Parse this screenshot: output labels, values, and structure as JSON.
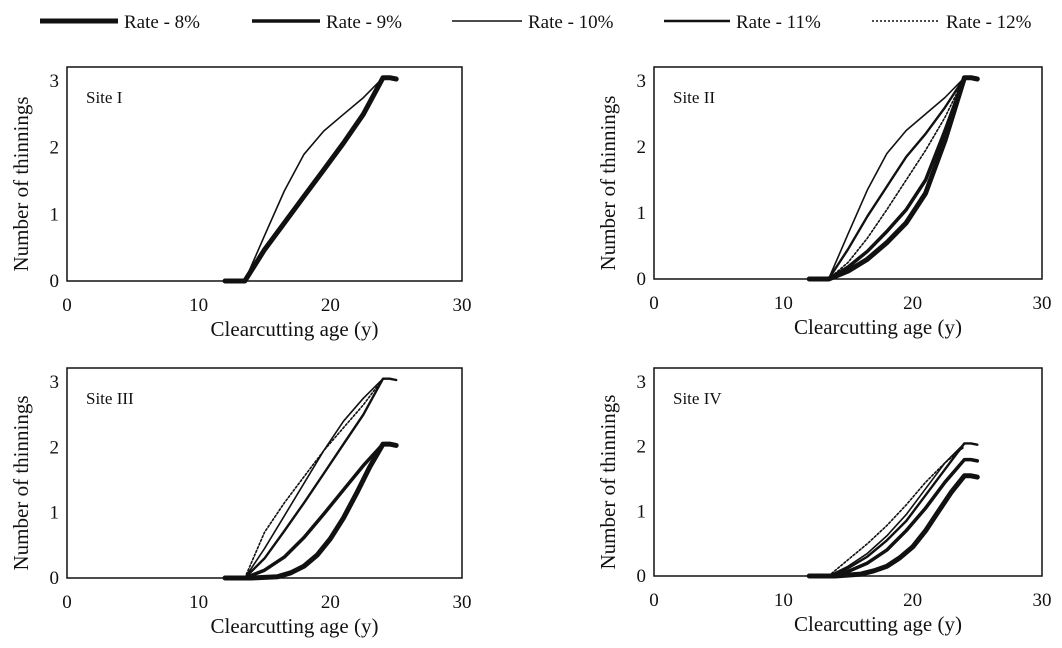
{
  "legend": {
    "entries": [
      {
        "label": "Rate - 8%",
        "stroke_width": 5,
        "dash": ""
      },
      {
        "label": "Rate - 9%",
        "stroke_width": 3.5,
        "dash": ""
      },
      {
        "label": "Rate - 10%",
        "stroke_width": 1.6,
        "dash": ""
      },
      {
        "label": "Rate - 11%",
        "stroke_width": 2.4,
        "dash": ""
      },
      {
        "label": "Rate - 12%",
        "stroke_width": 1.6,
        "dash": "2,2"
      }
    ]
  },
  "chart_data": [
    {
      "type": "line",
      "title": "Site I",
      "xlabel": "Clearcutting age (y)",
      "ylabel": "Number of thinnings",
      "xlim": [
        0,
        30
      ],
      "ylim": [
        0,
        3
      ],
      "xticks": [
        0,
        10,
        20,
        30
      ],
      "yticks": [
        0,
        1,
        2,
        3
      ],
      "grid": false,
      "series": [
        {
          "name": "Rate - 8%",
          "x": [
            12,
            13.5,
            15,
            16.5,
            18,
            19.5,
            21,
            22.5,
            24,
            24.5,
            25
          ],
          "y": [
            0,
            0,
            0.47,
            0.87,
            1.27,
            1.67,
            2.07,
            2.5,
            3.05,
            3.05,
            3.03
          ]
        },
        {
          "name": "Rate - 9%",
          "x": [
            12,
            13.5,
            15,
            16.5,
            18,
            19.5,
            21,
            22.5,
            24,
            24.5,
            25
          ],
          "y": [
            0,
            0,
            0.47,
            0.87,
            1.27,
            1.67,
            2.07,
            2.5,
            3.05,
            3.05,
            3.03
          ]
        },
        {
          "name": "Rate - 10%",
          "x": [
            13.5,
            15,
            16.5,
            18,
            19.5,
            21,
            22.5,
            24,
            24.5,
            25
          ],
          "y": [
            0,
            0.68,
            1.35,
            1.9,
            2.25,
            2.5,
            2.75,
            3.05,
            3.05,
            3.03
          ]
        },
        {
          "name": "Rate - 11%",
          "x": [
            12,
            13.5,
            15,
            16.5,
            18,
            19.5,
            21,
            22.5,
            24,
            24.5,
            25
          ],
          "y": [
            0,
            0,
            0.47,
            0.87,
            1.27,
            1.67,
            2.07,
            2.5,
            3.05,
            3.05,
            3.03
          ]
        },
        {
          "name": "Rate - 12%",
          "x": [
            12,
            13.5,
            15,
            16.5,
            18,
            19.5,
            21,
            22.5,
            24,
            24.5,
            25
          ],
          "y": [
            0,
            0,
            0.47,
            0.87,
            1.27,
            1.67,
            2.07,
            2.5,
            3.05,
            3.05,
            3.03
          ]
        }
      ]
    },
    {
      "type": "line",
      "title": "Site II",
      "xlabel": "Clearcutting age (y)",
      "ylabel": "Number of thinnings",
      "xlim": [
        0,
        30
      ],
      "ylim": [
        0,
        3
      ],
      "xticks": [
        0,
        10,
        20,
        30
      ],
      "yticks": [
        0,
        1,
        2,
        3
      ],
      "grid": false,
      "series": [
        {
          "name": "Rate - 8%",
          "x": [
            12,
            13.5,
            15,
            16.5,
            18,
            19.5,
            21,
            22.5,
            24,
            24.5,
            25
          ],
          "y": [
            0,
            0,
            0.12,
            0.3,
            0.55,
            0.85,
            1.3,
            2.1,
            3.05,
            3.05,
            3.03
          ]
        },
        {
          "name": "Rate - 9%",
          "x": [
            13.5,
            15,
            16.5,
            18,
            19.5,
            21,
            22.5,
            24,
            24.5,
            25
          ],
          "y": [
            0,
            0.18,
            0.42,
            0.72,
            1.05,
            1.5,
            2.25,
            3.05,
            3.05,
            3.03
          ]
        },
        {
          "name": "Rate - 10%",
          "x": [
            13.5,
            15,
            16.5,
            18,
            19.5,
            21,
            22.5,
            24,
            24.5,
            25
          ],
          "y": [
            0,
            0.68,
            1.35,
            1.9,
            2.25,
            2.5,
            2.75,
            3.05,
            3.05,
            3.03
          ]
        },
        {
          "name": "Rate - 11%",
          "x": [
            13.5,
            15,
            16.5,
            18,
            19.5,
            21,
            22.5,
            24,
            24.5,
            25
          ],
          "y": [
            0,
            0.45,
            0.95,
            1.4,
            1.85,
            2.2,
            2.6,
            3.05,
            3.05,
            3.03
          ]
        },
        {
          "name": "Rate - 12%",
          "x": [
            13.5,
            15,
            16.5,
            18,
            19.5,
            21,
            22.5,
            24,
            24.5,
            25
          ],
          "y": [
            0,
            0.25,
            0.62,
            1.05,
            1.5,
            1.95,
            2.45,
            3.05,
            3.05,
            3.03
          ]
        }
      ]
    },
    {
      "type": "line",
      "title": "Site III",
      "xlabel": "Clearcutting age (y)",
      "ylabel": "Number of thinnings",
      "xlim": [
        0,
        30
      ],
      "ylim": [
        0,
        3
      ],
      "xticks": [
        0,
        10,
        20,
        30
      ],
      "yticks": [
        0,
        1,
        2,
        3
      ],
      "grid": false,
      "series": [
        {
          "name": "Rate - 8%",
          "x": [
            12,
            14,
            16,
            17,
            18,
            19,
            20,
            21,
            22,
            23,
            24,
            24.5,
            25
          ],
          "y": [
            0,
            0,
            0.02,
            0.08,
            0.18,
            0.35,
            0.6,
            0.92,
            1.3,
            1.7,
            2.05,
            2.05,
            2.03
          ]
        },
        {
          "name": "Rate - 9%",
          "x": [
            13.5,
            15,
            16.5,
            18,
            19.5,
            21,
            22.5,
            24,
            24.5,
            25
          ],
          "y": [
            0,
            0.12,
            0.32,
            0.62,
            0.98,
            1.35,
            1.72,
            2.05,
            2.05,
            2.03
          ]
        },
        {
          "name": "Rate - 10%",
          "x": [
            13.5,
            15,
            16.5,
            18,
            19.5,
            21,
            22.5,
            24,
            24.5,
            25
          ],
          "y": [
            0,
            0.45,
            0.95,
            1.45,
            1.95,
            2.4,
            2.75,
            3.05,
            3.05,
            3.03
          ]
        },
        {
          "name": "Rate - 11%",
          "x": [
            13.5,
            15,
            16.5,
            18,
            19.5,
            21,
            22.5,
            24,
            24.5,
            25
          ],
          "y": [
            0,
            0.3,
            0.72,
            1.15,
            1.6,
            2.05,
            2.5,
            3.05,
            3.05,
            3.03
          ]
        },
        {
          "name": "Rate - 12%",
          "x": [
            13.5,
            15,
            16.5,
            18,
            19.5,
            21,
            22.5,
            24,
            24.5,
            25
          ],
          "y": [
            0,
            0.7,
            1.15,
            1.55,
            1.95,
            2.3,
            2.65,
            3.05,
            3.05,
            3.03
          ]
        }
      ]
    },
    {
      "type": "line",
      "title": "Site IV",
      "xlabel": "Clearcutting age (y)",
      "ylabel": "Number of thinnings",
      "xlim": [
        0,
        30
      ],
      "ylim": [
        0,
        3
      ],
      "xticks": [
        0,
        10,
        20,
        30
      ],
      "yticks": [
        0,
        1,
        2,
        3
      ],
      "grid": false,
      "series": [
        {
          "name": "Rate - 8%",
          "x": [
            12,
            14,
            16,
            17,
            18,
            19,
            20,
            21,
            22,
            23,
            24,
            24.5,
            25
          ],
          "y": [
            0,
            0,
            0.03,
            0.08,
            0.15,
            0.28,
            0.45,
            0.7,
            1.0,
            1.3,
            1.55,
            1.55,
            1.53
          ]
        },
        {
          "name": "Rate - 9%",
          "x": [
            13.5,
            15,
            16.5,
            18,
            19.5,
            21,
            22.5,
            24,
            24.5,
            25
          ],
          "y": [
            0,
            0.07,
            0.2,
            0.4,
            0.7,
            1.05,
            1.45,
            1.8,
            1.8,
            1.78
          ]
        },
        {
          "name": "Rate - 10%",
          "x": [
            13.5,
            15,
            16.5,
            18,
            19.5,
            21,
            22.5,
            24,
            24.5,
            25
          ],
          "y": [
            0,
            0.15,
            0.35,
            0.62,
            0.95,
            1.35,
            1.75,
            2.05,
            2.05,
            2.03
          ]
        },
        {
          "name": "Rate - 11%",
          "x": [
            13.5,
            15,
            16.5,
            18,
            19.5,
            21,
            22.5,
            24,
            24.5,
            25
          ],
          "y": [
            0,
            0.12,
            0.3,
            0.55,
            0.85,
            1.25,
            1.65,
            2.05,
            2.05,
            2.03
          ]
        },
        {
          "name": "Rate - 12%",
          "x": [
            13.5,
            15,
            16.5,
            18,
            19.5,
            21,
            22.5,
            24
          ],
          "y": [
            0,
            0.25,
            0.5,
            0.78,
            1.1,
            1.45,
            1.75,
            2.0
          ]
        }
      ]
    }
  ]
}
